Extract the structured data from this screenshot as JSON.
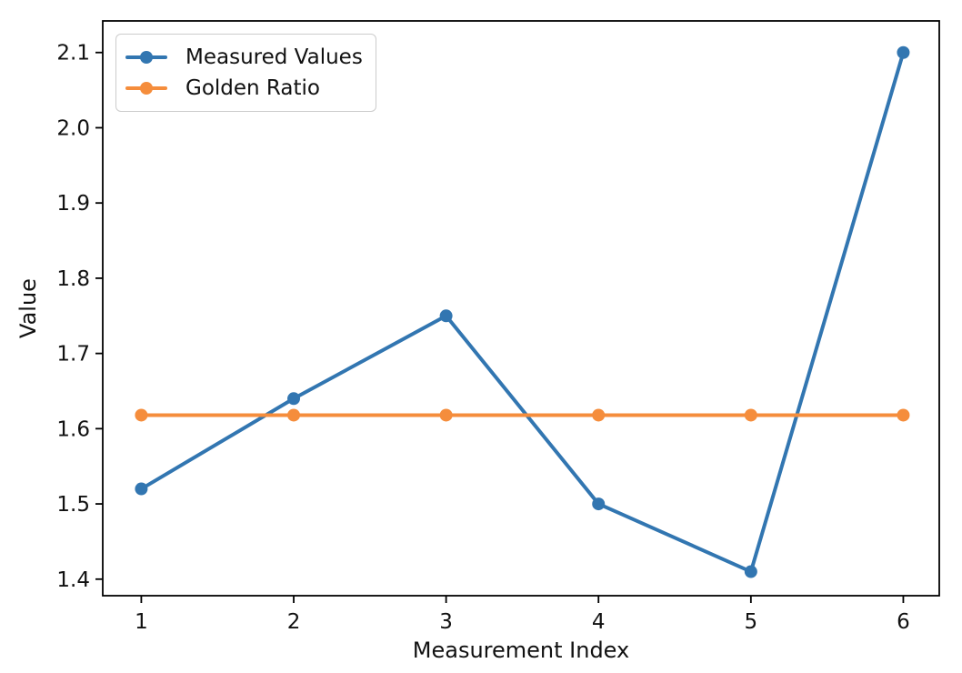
{
  "figure": {
    "background": "#ffffff",
    "text_color": "#111111",
    "spine_color": "#000000"
  },
  "chart_data": {
    "type": "line",
    "x": [
      1,
      2,
      3,
      4,
      5,
      6
    ],
    "series": [
      {
        "name": "Measured Values",
        "color": "#3276b1",
        "marker": "circle",
        "values": [
          1.52,
          1.64,
          1.75,
          1.5,
          1.41,
          2.1
        ]
      },
      {
        "name": "Golden Ratio",
        "color": "#f58d3c",
        "marker": "circle",
        "values": [
          1.618,
          1.618,
          1.618,
          1.618,
          1.618,
          1.618
        ]
      }
    ],
    "title": "",
    "xlabel": "Measurement Index",
    "ylabel": "Value",
    "xticks": [
      1,
      2,
      3,
      4,
      5,
      6
    ],
    "xtick_labels": [
      "1",
      "2",
      "3",
      "4",
      "5",
      "6"
    ],
    "yticks": [
      1.4,
      1.5,
      1.6,
      1.7,
      1.8,
      1.9,
      2.0,
      2.1
    ],
    "ytick_labels": [
      "1.4",
      "1.5",
      "1.6",
      "1.7",
      "1.8",
      "1.9",
      "2.0",
      "2.1"
    ],
    "xlim": [
      0.747,
      6.236
    ],
    "ylim": [
      1.378,
      2.142
    ],
    "grid": false,
    "legend_position": "upper left"
  }
}
